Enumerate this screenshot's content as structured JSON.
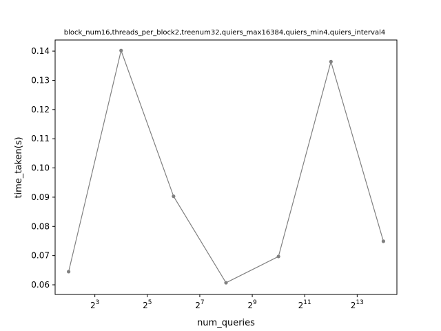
{
  "chart_data": {
    "type": "line",
    "title": "block_num16,threads_per_block2,treenum32,quiers_max16384,quiers_min4,quiers_interval4",
    "xlabel": "num_queries",
    "ylabel": "time_taken(s)",
    "x_scale": "log2",
    "x_ticks": [
      {
        "value": 8,
        "base": "2",
        "exp": "3"
      },
      {
        "value": 32,
        "base": "2",
        "exp": "5"
      },
      {
        "value": 128,
        "base": "2",
        "exp": "7"
      },
      {
        "value": 512,
        "base": "2",
        "exp": "9"
      },
      {
        "value": 2048,
        "base": "2",
        "exp": "11"
      },
      {
        "value": 8192,
        "base": "2",
        "exp": "13"
      }
    ],
    "y_ticks": [
      "0.06",
      "0.07",
      "0.08",
      "0.09",
      "0.10",
      "0.11",
      "0.12",
      "0.13",
      "0.14"
    ],
    "xlim": [
      2.8,
      23400
    ],
    "ylim": [
      0.0567,
      0.1438
    ],
    "grid": false,
    "series": [
      {
        "color": "#808080",
        "x": [
          4,
          16,
          64,
          256,
          1024,
          4096,
          16384
        ],
        "y": [
          0.0645,
          0.1402,
          0.0903,
          0.0607,
          0.0697,
          0.1364,
          0.0749
        ]
      }
    ]
  }
}
